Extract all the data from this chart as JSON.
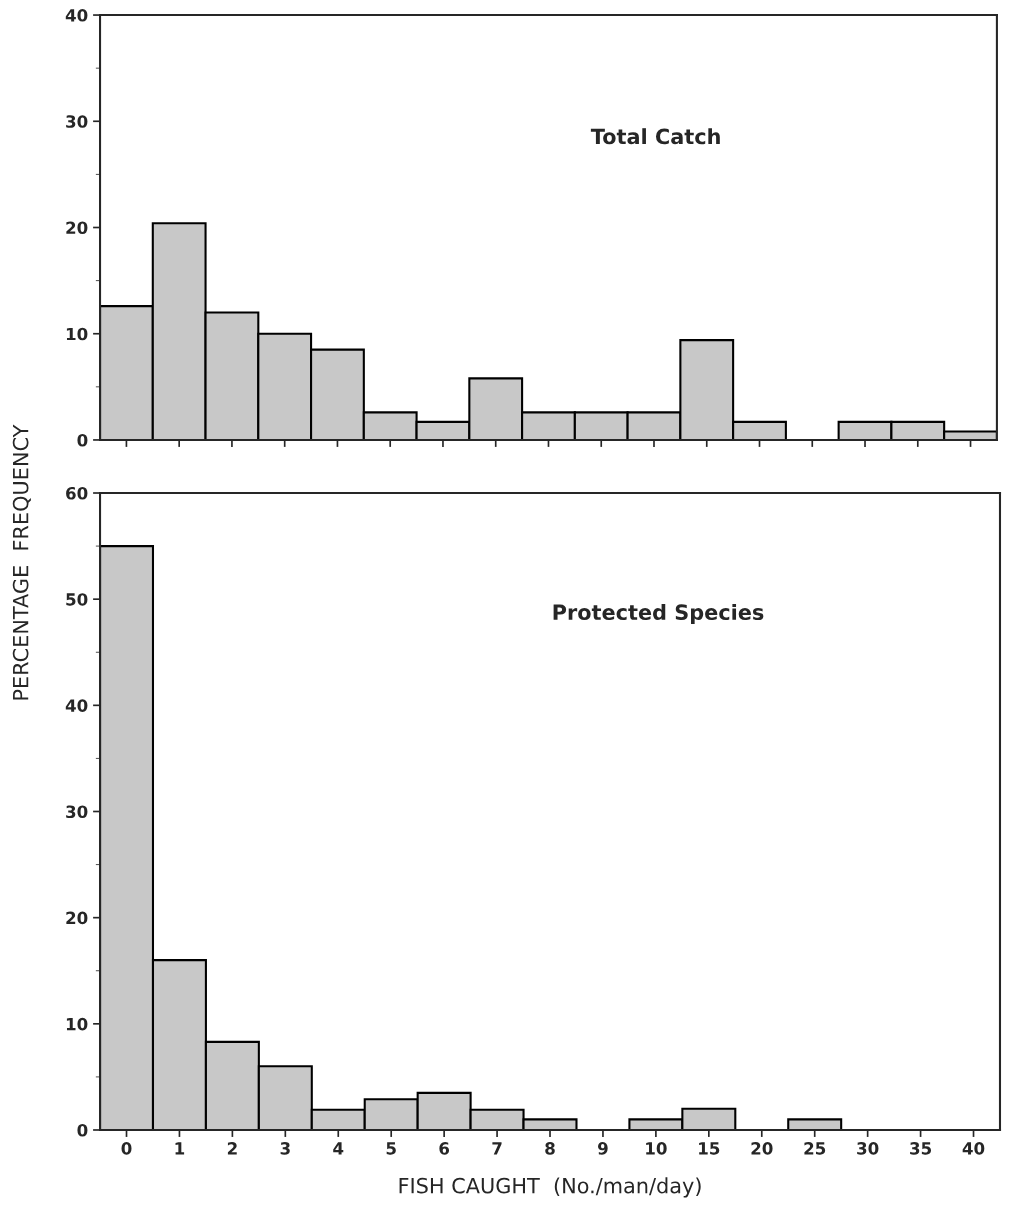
{
  "chart_data": [
    {
      "type": "bar",
      "categories": [
        "0",
        "1",
        "2",
        "3",
        "4",
        "5",
        "6",
        "7",
        "8",
        "9",
        "10",
        "15",
        "20",
        "25",
        "30",
        "35",
        "40"
      ],
      "values": [
        12.6,
        20.4,
        12.0,
        10.0,
        8.5,
        2.6,
        1.7,
        5.8,
        2.6,
        2.6,
        2.6,
        9.4,
        1.7,
        0,
        1.7,
        1.7,
        0.8
      ],
      "color": "#c8c8c8",
      "ylim": [
        0,
        40
      ],
      "yticks": [
        0,
        10,
        20,
        30,
        40
      ],
      "tick_labels": "y",
      "annotations": [
        "Total Catch"
      ],
      "grid": false
    },
    {
      "type": "bar",
      "categories": [
        "0",
        "1",
        "2",
        "3",
        "4",
        "5",
        "6",
        "7",
        "8",
        "9",
        "10",
        "15",
        "20",
        "25",
        "30",
        "35",
        "40"
      ],
      "values": [
        55,
        16,
        8.3,
        6,
        1.9,
        2.9,
        3.5,
        1.9,
        1,
        0,
        1,
        2,
        0,
        1,
        0,
        0,
        0
      ],
      "color": "#c8c8c8",
      "ylim": [
        0,
        60
      ],
      "yticks": [
        0,
        10,
        20,
        30,
        40,
        50,
        60
      ],
      "xlabel": "FISH CAUGHT  (No./man/day)",
      "ylabel": "PERCENTAGE  FREQUENCY",
      "annotations": [
        "Protected Species"
      ],
      "grid": false
    }
  ]
}
